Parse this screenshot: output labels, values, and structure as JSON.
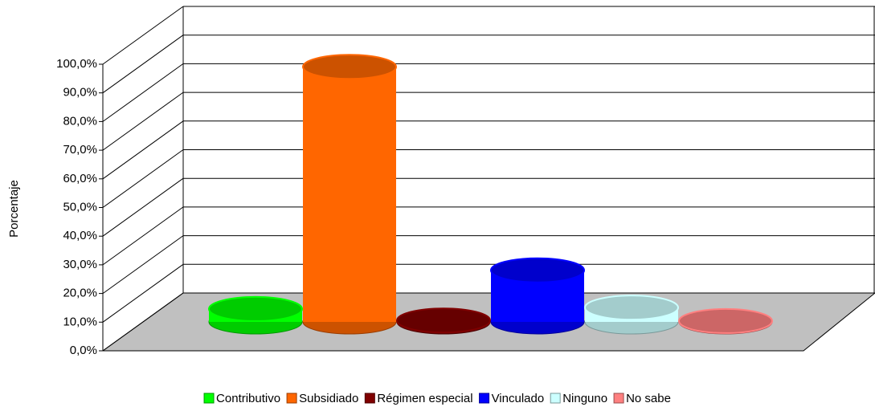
{
  "chart_data": {
    "type": "bar3d-cylinder",
    "y_label": "Porcentaje",
    "categories": [
      "Contributivo",
      "Subsidiado",
      "Régimen especial",
      "Vinculado",
      "Ninguno",
      "No sabe"
    ],
    "values": [
      4.5,
      89,
      0.5,
      18,
      5,
      0.3
    ],
    "colors": [
      "#00ff00",
      "#ff6600",
      "#800000",
      "#0000ff",
      "#ccffff",
      "#ff8080"
    ],
    "ylim": [
      0,
      100
    ],
    "yticks": [
      {
        "value": 0,
        "label": "0,0%"
      },
      {
        "value": 10,
        "label": "10,0%"
      },
      {
        "value": 20,
        "label": "20,0%"
      },
      {
        "value": 30,
        "label": "30,0%"
      },
      {
        "value": 40,
        "label": "40,0%"
      },
      {
        "value": 50,
        "label": "50,0%"
      },
      {
        "value": 60,
        "label": "60,0%"
      },
      {
        "value": 70,
        "label": "70,0%"
      },
      {
        "value": 80,
        "label": "80,0%"
      },
      {
        "value": 90,
        "label": "90,0%"
      },
      {
        "value": 100,
        "label": "100,0%"
      }
    ],
    "grid": true,
    "legend": "bottom"
  }
}
